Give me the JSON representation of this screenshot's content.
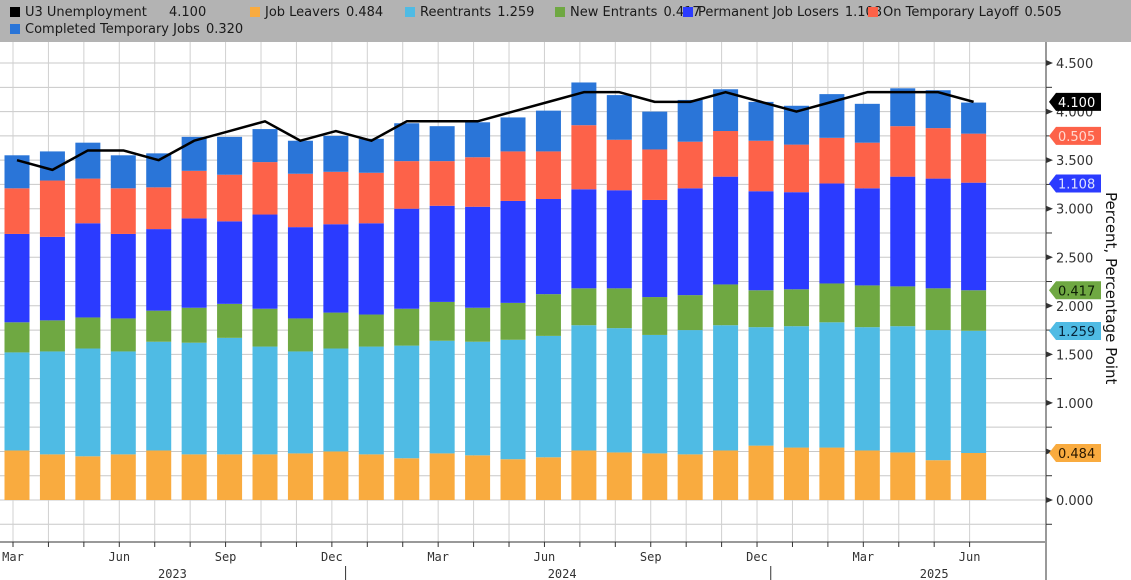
{
  "legend": [
    {
      "name": "U3 Unemployment",
      "value": "4.100",
      "color": "#000000"
    },
    {
      "name": "Job Leavers",
      "value": "0.484",
      "color": "#f9ab3f"
    },
    {
      "name": "Reentrants",
      "value": "1.259",
      "color": "#4fbbe4"
    },
    {
      "name": "New Entrants",
      "value": "0.417",
      "color": "#6fa842"
    },
    {
      "name": "Permanent Job Losers",
      "value": "1.108",
      "color": "#2b3bff"
    },
    {
      "name": "On Temporary Layoff",
      "value": "0.505",
      "color": "#fd6249"
    },
    {
      "name": "Completed Temporary Jobs",
      "value": "0.320",
      "color": "#2a75d8"
    }
  ],
  "chart_data": {
    "type": "bar",
    "stacked": true,
    "title": "",
    "xlabel": "",
    "ylabel": "Percent, Percentage Point",
    "ylim": [
      -0.35,
      4.5
    ],
    "yticks": [
      "0.000",
      "0.500",
      "1.000",
      "1.500",
      "2.000",
      "2.500",
      "3.000",
      "3.500",
      "4.000",
      "4.500"
    ],
    "grid": true,
    "legend_position": "top",
    "categories": [
      "Mar 2023",
      "Apr 2023",
      "May 2023",
      "Jun 2023",
      "Jul 2023",
      "Aug 2023",
      "Sep 2023",
      "Oct 2023",
      "Nov 2023",
      "Dec 2023",
      "Jan 2024",
      "Feb 2024",
      "Mar 2024",
      "Apr 2024",
      "May 2024",
      "Jun 2024",
      "Jul 2024",
      "Aug 2024",
      "Sep 2024",
      "Oct 2024",
      "Nov 2024",
      "Dec 2024",
      "Jan 2025",
      "Feb 2025",
      "Mar 2025",
      "Apr 2025",
      "May 2025",
      "Jun 2025"
    ],
    "x_tick_labels": [
      {
        "index": 0,
        "label": "Mar"
      },
      {
        "index": 3,
        "label": "Jun"
      },
      {
        "index": 6,
        "label": "Sep"
      },
      {
        "index": 9,
        "label": "Dec"
      },
      {
        "index": 12,
        "label": "Mar"
      },
      {
        "index": 15,
        "label": "Jun"
      },
      {
        "index": 18,
        "label": "Sep"
      },
      {
        "index": 21,
        "label": "Dec"
      },
      {
        "index": 24,
        "label": "Mar"
      },
      {
        "index": 27,
        "label": "Jun"
      }
    ],
    "year_labels": [
      {
        "center_index": 4.5,
        "label": "2023"
      },
      {
        "center_index": 15.5,
        "label": "2024"
      },
      {
        "center_index": 26.0,
        "label": "2025"
      }
    ],
    "year_dividers": [
      9.5,
      21.5
    ],
    "series": [
      {
        "name": "Job Leavers",
        "color": "#f9ab3f",
        "values": [
          0.51,
          0.47,
          0.45,
          0.47,
          0.51,
          0.47,
          0.47,
          0.47,
          0.48,
          0.5,
          0.47,
          0.43,
          0.48,
          0.46,
          0.42,
          0.44,
          0.51,
          0.49,
          0.48,
          0.47,
          0.51,
          0.56,
          0.54,
          0.54,
          0.51,
          0.49,
          0.41,
          0.484
        ]
      },
      {
        "name": "Reentrants",
        "color": "#4fbbe4",
        "values": [
          1.01,
          1.06,
          1.11,
          1.06,
          1.12,
          1.15,
          1.2,
          1.11,
          1.05,
          1.06,
          1.11,
          1.16,
          1.16,
          1.17,
          1.23,
          1.25,
          1.29,
          1.28,
          1.22,
          1.28,
          1.29,
          1.22,
          1.25,
          1.29,
          1.27,
          1.3,
          1.34,
          1.259
        ]
      },
      {
        "name": "New Entrants",
        "color": "#6fa842",
        "values": [
          0.31,
          0.32,
          0.32,
          0.34,
          0.32,
          0.36,
          0.35,
          0.39,
          0.34,
          0.37,
          0.33,
          0.38,
          0.4,
          0.35,
          0.38,
          0.43,
          0.38,
          0.41,
          0.39,
          0.36,
          0.42,
          0.38,
          0.38,
          0.4,
          0.43,
          0.41,
          0.43,
          0.417
        ]
      },
      {
        "name": "Permanent Job Losers",
        "color": "#2b3bff",
        "values": [
          0.91,
          0.86,
          0.97,
          0.87,
          0.84,
          0.92,
          0.85,
          0.97,
          0.94,
          0.91,
          0.94,
          1.03,
          0.99,
          1.04,
          1.05,
          0.98,
          1.02,
          1.01,
          1.0,
          1.1,
          1.11,
          1.02,
          1.0,
          1.03,
          1.0,
          1.13,
          1.13,
          1.108
        ]
      },
      {
        "name": "On Temporary Layoff",
        "color": "#fd6249",
        "values": [
          0.47,
          0.58,
          0.46,
          0.47,
          0.43,
          0.49,
          0.48,
          0.54,
          0.55,
          0.54,
          0.52,
          0.49,
          0.46,
          0.51,
          0.51,
          0.49,
          0.66,
          0.52,
          0.52,
          0.48,
          0.47,
          0.52,
          0.49,
          0.47,
          0.47,
          0.52,
          0.52,
          0.505
        ]
      },
      {
        "name": "Completed Temporary Jobs",
        "color": "#2a75d8",
        "values": [
          0.34,
          0.3,
          0.37,
          0.34,
          0.35,
          0.35,
          0.39,
          0.34,
          0.34,
          0.37,
          0.35,
          0.39,
          0.36,
          0.36,
          0.35,
          0.42,
          0.44,
          0.46,
          0.39,
          0.43,
          0.43,
          0.4,
          0.4,
          0.45,
          0.4,
          0.39,
          0.39,
          0.32
        ]
      }
    ],
    "line": {
      "name": "U3 Unemployment",
      "color": "#000000",
      "values": [
        3.5,
        3.4,
        3.6,
        3.6,
        3.5,
        3.7,
        3.8,
        3.9,
        3.7,
        3.8,
        3.7,
        3.9,
        3.9,
        3.9,
        4.0,
        4.1,
        4.2,
        4.2,
        4.1,
        4.1,
        4.2,
        4.1,
        4.0,
        4.1,
        4.2,
        4.2,
        4.2,
        4.1
      ]
    },
    "end_tags": [
      {
        "series": "U3 Unemployment",
        "value": 4.1,
        "label": "4.100",
        "bg": "#000000",
        "fg": "#ffffff"
      },
      {
        "series": "On Temporary Layoff",
        "value": 3.75,
        "label": "0.505",
        "bg": "#fd6249",
        "fg": "#ffd9d0"
      },
      {
        "series": "Permanent Job Losers",
        "value": 3.26,
        "label": "1.108",
        "bg": "#2b3bff",
        "fg": "#dfe3ff"
      },
      {
        "series": "New Entrants",
        "value": 2.16,
        "label": "0.417",
        "bg": "#6fa842",
        "fg": "#0d1d05"
      },
      {
        "series": "Reentrants",
        "value": 1.74,
        "label": "1.259",
        "bg": "#4fbbe4",
        "fg": "#06243a"
      },
      {
        "series": "Job Leavers",
        "value": 0.484,
        "label": "0.484",
        "bg": "#f9ab3f",
        "fg": "#2a1800"
      }
    ]
  }
}
